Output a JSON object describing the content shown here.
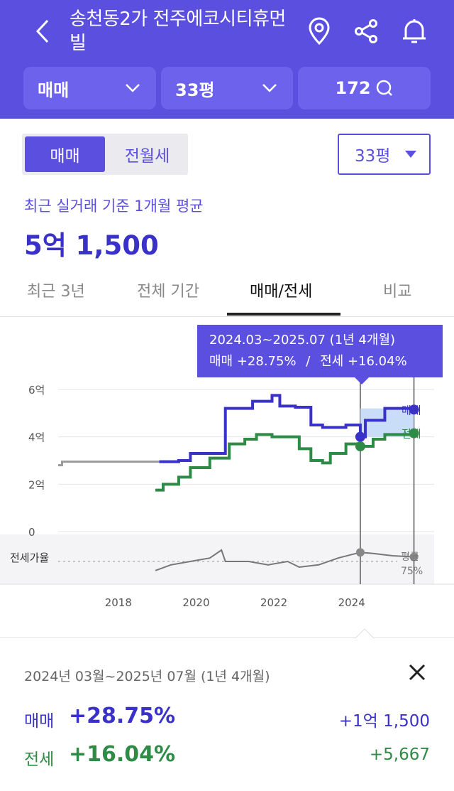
{
  "header": {
    "title": "송천동2가 전주에코시티휴먼빌",
    "icons": [
      "back-icon",
      "map-pin-icon",
      "share-icon",
      "bell-icon"
    ],
    "dropdown_type": "매매",
    "dropdown_size": "33평",
    "comment_count": "172"
  },
  "toggle": {
    "active": "매매",
    "inactive": "전월세"
  },
  "size_select": "33평",
  "summary": {
    "label": "최근 실거래 기준 1개월 평균",
    "price": "5억 1,500"
  },
  "tabs": [
    "최근 3년",
    "전체 기간",
    "매매/전세",
    "비교"
  ],
  "tooltip": {
    "range": "2024.03~2025.07 (1년 4개월)",
    "sale": "매매 +28.75%",
    "sep": "/",
    "jeonse": "전세 +16.04%"
  },
  "chart_data": {
    "type": "line",
    "x_ticks": [
      "2018",
      "2020",
      "2022",
      "2024"
    ],
    "y_ticks": [
      "6억",
      "4억",
      "2억",
      "0"
    ],
    "ylim": [
      0,
      6
    ],
    "series": [
      {
        "name": "매매",
        "color": "#3a32c8",
        "points": [
          [
            2019.0,
            2.95
          ],
          [
            2019.5,
            3.0
          ],
          [
            2019.8,
            3.3
          ],
          [
            2020.6,
            3.3
          ],
          [
            2020.7,
            5.2
          ],
          [
            2021.2,
            5.2
          ],
          [
            2021.4,
            5.5
          ],
          [
            2021.7,
            5.5
          ],
          [
            2021.9,
            5.75
          ],
          [
            2022.0,
            5.75
          ],
          [
            2022.1,
            5.3
          ],
          [
            2022.5,
            5.25
          ],
          [
            2022.8,
            5.25
          ],
          [
            2022.9,
            4.5
          ],
          [
            2023.2,
            4.4
          ],
          [
            2023.8,
            4.5
          ],
          [
            2024.17,
            4.0
          ],
          [
            2024.3,
            4.7
          ],
          [
            2024.5,
            4.7
          ],
          [
            2024.8,
            5.2
          ],
          [
            2025.55,
            5.15
          ]
        ]
      },
      {
        "name": "전세",
        "color": "#2e8b45",
        "points": [
          [
            2018.9,
            1.75
          ],
          [
            2019.1,
            2.0
          ],
          [
            2019.5,
            2.3
          ],
          [
            2019.8,
            2.7
          ],
          [
            2020.3,
            3.1
          ],
          [
            2020.6,
            3.1
          ],
          [
            2020.8,
            3.7
          ],
          [
            2021.2,
            3.9
          ],
          [
            2021.5,
            4.1
          ],
          [
            2021.9,
            4.0
          ],
          [
            2022.2,
            4.0
          ],
          [
            2022.6,
            3.5
          ],
          [
            2022.9,
            3.0
          ],
          [
            2023.2,
            2.9
          ],
          [
            2023.4,
            3.3
          ],
          [
            2023.8,
            3.7
          ],
          [
            2024.17,
            3.6
          ],
          [
            2024.5,
            3.9
          ],
          [
            2024.8,
            4.1
          ],
          [
            2025.55,
            4.15
          ]
        ]
      },
      {
        "name": "매매 (이전)",
        "color": "#9a9a9a",
        "points": [
          [
            2016.4,
            2.8
          ],
          [
            2016.5,
            2.95
          ],
          [
            2017.5,
            2.95
          ],
          [
            2018.5,
            2.95
          ],
          [
            2019.0,
            2.95
          ]
        ]
      }
    ],
    "ratio_series": {
      "name": "전세가율",
      "avg_label": "평균",
      "avg_value": "75%",
      "points": [
        [
          2018.9,
          67
        ],
        [
          2019.3,
          72
        ],
        [
          2019.8,
          75
        ],
        [
          2020.3,
          78
        ],
        [
          2020.6,
          85
        ],
        [
          2020.7,
          75
        ],
        [
          2021.3,
          75
        ],
        [
          2021.8,
          72
        ],
        [
          2022.3,
          75
        ],
        [
          2022.6,
          70
        ],
        [
          2023.1,
          72
        ],
        [
          2023.6,
          78
        ],
        [
          2024.17,
          83
        ],
        [
          2024.5,
          82
        ],
        [
          2025.0,
          80
        ],
        [
          2025.55,
          79
        ]
      ]
    },
    "legend": {
      "sale": "매매",
      "jeonse": "전세"
    },
    "markers": [
      {
        "x": 2024.17,
        "sale": 4.0,
        "jeonse": 3.6
      },
      {
        "x": 2025.55,
        "sale": 5.15,
        "jeonse": 4.15
      }
    ],
    "ratio_label": "전세가율"
  },
  "result": {
    "period": "2024년 03월~2025년 07월 (1년 4개월)",
    "sale_label": "매매",
    "sale_pct": "+28.75%",
    "sale_amt": "+1억 1,500",
    "jeonse_label": "전세",
    "jeonse_pct": "+16.04%",
    "jeonse_amt": "+5,667"
  }
}
